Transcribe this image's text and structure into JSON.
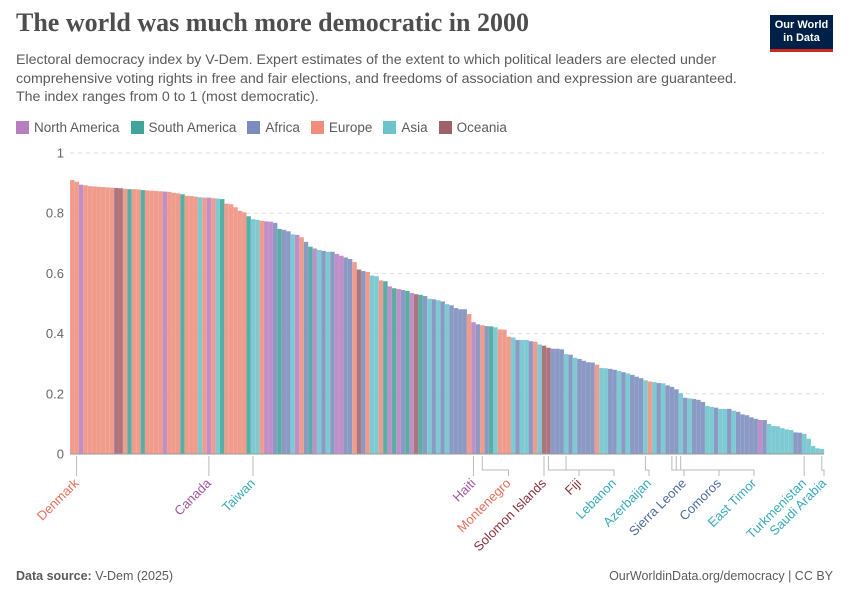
{
  "header": {
    "title": "The world was much more democratic in 2000",
    "subtitle": "Electoral democracy index by V-Dem. Expert estimates of the extent to which political leaders are elected under comprehensive voting rights in free and fair elections, and freedoms of association and expression are guaranteed. The index ranges from 0 to 1 (most democratic).",
    "logo_line1": "Our World",
    "logo_line2": "in Data"
  },
  "legend": [
    {
      "key": "NA",
      "label": "North America",
      "color": "#b77fbf",
      "text_color": "#a2559c"
    },
    {
      "key": "SA",
      "label": "South America",
      "color": "#40a497",
      "text_color": "#2c8465"
    },
    {
      "key": "AF",
      "label": "Africa",
      "color": "#7b8bbd",
      "text_color": "#4c6a9c"
    },
    {
      "key": "EU",
      "label": "Europe",
      "color": "#ee8e7c",
      "text_color": "#e56e5a"
    },
    {
      "key": "AS",
      "label": "Asia",
      "color": "#6cc3cc",
      "text_color": "#38aaba"
    },
    {
      "key": "OC",
      "label": "Oceania",
      "color": "#a0616b",
      "text_color": "#883039"
    }
  ],
  "chart_data": {
    "type": "bar",
    "title": "The world was much more democratic in 2000",
    "xlabel": "",
    "ylabel": "",
    "ylim": [
      0,
      1
    ],
    "yticks": [
      "0",
      "0.2",
      "0.4",
      "0.6",
      "0.8",
      "1"
    ],
    "grid": "horizontal dashed",
    "legend_placement": "top-left",
    "sorted": "descending",
    "bars": [
      [
        0.91,
        "EU"
      ],
      [
        0.905,
        "EU",
        "Denmark"
      ],
      [
        0.895,
        "NA"
      ],
      [
        0.893,
        "EU"
      ],
      [
        0.89,
        "EU"
      ],
      [
        0.889,
        "EU"
      ],
      [
        0.888,
        "EU"
      ],
      [
        0.887,
        "EU"
      ],
      [
        0.886,
        "EU"
      ],
      [
        0.885,
        "EU"
      ],
      [
        0.884,
        "OC"
      ],
      [
        0.883,
        "OC"
      ],
      [
        0.881,
        "EU"
      ],
      [
        0.88,
        "SA"
      ],
      [
        0.88,
        "EU"
      ],
      [
        0.879,
        "EU"
      ],
      [
        0.877,
        "SA"
      ],
      [
        0.876,
        "EU"
      ],
      [
        0.875,
        "EU"
      ],
      [
        0.874,
        "EU"
      ],
      [
        0.873,
        "EU"
      ],
      [
        0.872,
        "NA"
      ],
      [
        0.871,
        "EU"
      ],
      [
        0.868,
        "EU"
      ],
      [
        0.866,
        "EU"
      ],
      [
        0.863,
        "SA"
      ],
      [
        0.858,
        "EU"
      ],
      [
        0.857,
        "EU"
      ],
      [
        0.855,
        "EU"
      ],
      [
        0.853,
        "AS"
      ],
      [
        0.852,
        "EU"
      ],
      [
        0.852,
        "NA",
        "Canada"
      ],
      [
        0.85,
        "EU"
      ],
      [
        0.849,
        "AS"
      ],
      [
        0.847,
        "SA"
      ],
      [
        0.832,
        "EU"
      ],
      [
        0.83,
        "EU"
      ],
      [
        0.82,
        "EU"
      ],
      [
        0.808,
        "EU"
      ],
      [
        0.803,
        "EU"
      ],
      [
        0.79,
        "SA"
      ],
      [
        0.78,
        "AS",
        "Taiwan"
      ],
      [
        0.778,
        "AS"
      ],
      [
        0.775,
        "EU"
      ],
      [
        0.773,
        "NA"
      ],
      [
        0.772,
        "NA"
      ],
      [
        0.768,
        "AF"
      ],
      [
        0.748,
        "SA"
      ],
      [
        0.745,
        "AF"
      ],
      [
        0.74,
        "AF"
      ],
      [
        0.73,
        "AS"
      ],
      [
        0.728,
        "NA"
      ],
      [
        0.72,
        "EU"
      ],
      [
        0.705,
        "AF"
      ],
      [
        0.689,
        "SA"
      ],
      [
        0.683,
        "NA"
      ],
      [
        0.678,
        "AS"
      ],
      [
        0.675,
        "AF"
      ],
      [
        0.672,
        "AS"
      ],
      [
        0.672,
        "AF"
      ],
      [
        0.665,
        "NA"
      ],
      [
        0.659,
        "NA"
      ],
      [
        0.653,
        "AF"
      ],
      [
        0.648,
        "AF"
      ],
      [
        0.638,
        "EU"
      ],
      [
        0.613,
        "OC"
      ],
      [
        0.608,
        "AF"
      ],
      [
        0.605,
        "EU"
      ],
      [
        0.593,
        "AS"
      ],
      [
        0.591,
        "AS"
      ],
      [
        0.577,
        "EU"
      ],
      [
        0.574,
        "SA"
      ],
      [
        0.557,
        "NA"
      ],
      [
        0.551,
        "SA"
      ],
      [
        0.548,
        "NA"
      ],
      [
        0.545,
        "AF"
      ],
      [
        0.542,
        "SA"
      ],
      [
        0.535,
        "NA"
      ],
      [
        0.531,
        "OC"
      ],
      [
        0.529,
        "SA"
      ],
      [
        0.525,
        "AF"
      ],
      [
        0.516,
        "AS"
      ],
      [
        0.514,
        "AF"
      ],
      [
        0.511,
        "AS"
      ],
      [
        0.507,
        "AF"
      ],
      [
        0.498,
        "AS"
      ],
      [
        0.494,
        "AF"
      ],
      [
        0.485,
        "AF"
      ],
      [
        0.481,
        "AF"
      ],
      [
        0.481,
        "AF"
      ],
      [
        0.465,
        "EU"
      ],
      [
        0.438,
        "NA",
        "Haiti"
      ],
      [
        0.431,
        "AF"
      ],
      [
        0.428,
        "EU",
        "Montenegro"
      ],
      [
        0.425,
        "AF"
      ],
      [
        0.424,
        "SA"
      ],
      [
        0.421,
        "AS"
      ],
      [
        0.414,
        "EU"
      ],
      [
        0.413,
        "EU"
      ],
      [
        0.39,
        "EU"
      ],
      [
        0.387,
        "AS"
      ],
      [
        0.379,
        "AF"
      ],
      [
        0.379,
        "AS"
      ],
      [
        0.379,
        "AS"
      ],
      [
        0.375,
        "AF"
      ],
      [
        0.373,
        "EU"
      ],
      [
        0.364,
        "AS"
      ],
      [
        0.36,
        "OC",
        "Solomon Islands"
      ],
      [
        0.353,
        "OC",
        "Fiji"
      ],
      [
        0.35,
        "AF"
      ],
      [
        0.35,
        "AF"
      ],
      [
        0.348,
        "AF"
      ],
      [
        0.332,
        "AS",
        "Lebanon"
      ],
      [
        0.33,
        "AF"
      ],
      [
        0.32,
        "AS"
      ],
      [
        0.316,
        "AF"
      ],
      [
        0.31,
        "AF"
      ],
      [
        0.305,
        "AF"
      ],
      [
        0.304,
        "AF"
      ],
      [
        0.297,
        "EU"
      ],
      [
        0.286,
        "AS"
      ],
      [
        0.285,
        "AS"
      ],
      [
        0.283,
        "AF"
      ],
      [
        0.28,
        "AF"
      ],
      [
        0.276,
        "AS"
      ],
      [
        0.272,
        "AF"
      ],
      [
        0.268,
        "AS"
      ],
      [
        0.263,
        "AF"
      ],
      [
        0.257,
        "AF"
      ],
      [
        0.252,
        "AF"
      ],
      [
        0.245,
        "AS",
        "Azerbaijan"
      ],
      [
        0.241,
        "EU"
      ],
      [
        0.239,
        "AS"
      ],
      [
        0.236,
        "AF"
      ],
      [
        0.235,
        "AS"
      ],
      [
        0.228,
        "AF"
      ],
      [
        0.223,
        "AF",
        "Sierra Leone"
      ],
      [
        0.215,
        "AF",
        "Comoros"
      ],
      [
        0.202,
        "AS",
        "East Timor"
      ],
      [
        0.187,
        "AF"
      ],
      [
        0.185,
        "AS"
      ],
      [
        0.183,
        "AF"
      ],
      [
        0.18,
        "AF"
      ],
      [
        0.173,
        "AF"
      ],
      [
        0.16,
        "AS"
      ],
      [
        0.157,
        "AS"
      ],
      [
        0.154,
        "AF"
      ],
      [
        0.15,
        "AS"
      ],
      [
        0.15,
        "AS"
      ],
      [
        0.15,
        "AF"
      ],
      [
        0.144,
        "AS"
      ],
      [
        0.14,
        "AF"
      ],
      [
        0.132,
        "AF"
      ],
      [
        0.129,
        "AF"
      ],
      [
        0.122,
        "AF"
      ],
      [
        0.117,
        "AF"
      ],
      [
        0.113,
        "NA"
      ],
      [
        0.113,
        "AF"
      ],
      [
        0.1,
        "AS"
      ],
      [
        0.093,
        "AS"
      ],
      [
        0.092,
        "AS"
      ],
      [
        0.086,
        "AS"
      ],
      [
        0.082,
        "AS"
      ],
      [
        0.08,
        "AS"
      ],
      [
        0.072,
        "AF"
      ],
      [
        0.071,
        "AF"
      ],
      [
        0.067,
        "AS",
        "Turkmenistan"
      ],
      [
        0.051,
        "AS"
      ],
      [
        0.027,
        "AS"
      ],
      [
        0.019,
        "AS"
      ],
      [
        0.017,
        "AS",
        "Saudi Arabia"
      ]
    ]
  },
  "footer": {
    "source_label": "Data source:",
    "source_value": "V-Dem (2025)",
    "url": "OurWorldinData.org/democracy | CC BY"
  }
}
